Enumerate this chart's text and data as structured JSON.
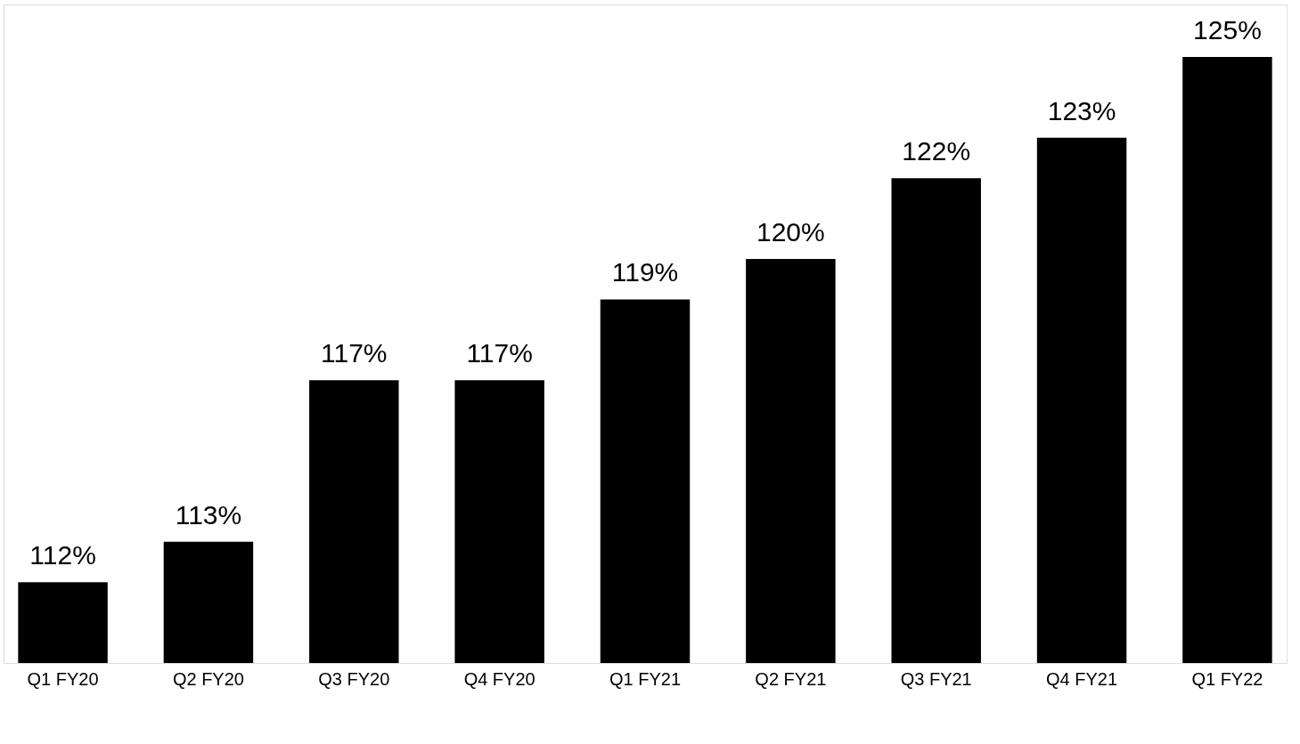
{
  "chart_data": {
    "type": "bar",
    "categories": [
      "Q1 FY20",
      "Q2 FY20",
      "Q3 FY20",
      "Q4 FY20",
      "Q1 FY21",
      "Q2 FY21",
      "Q3 FY21",
      "Q4 FY21",
      "Q1 FY22"
    ],
    "values": [
      112,
      113,
      117,
      117,
      119,
      120,
      122,
      123,
      125
    ],
    "value_labels": [
      "112%",
      "113%",
      "117%",
      "117%",
      "119%",
      "120%",
      "122%",
      "123%",
      "125%"
    ],
    "color": "#000000",
    "ylim": [
      110,
      126.3
    ],
    "tick_labels": "x",
    "grid": false
  }
}
